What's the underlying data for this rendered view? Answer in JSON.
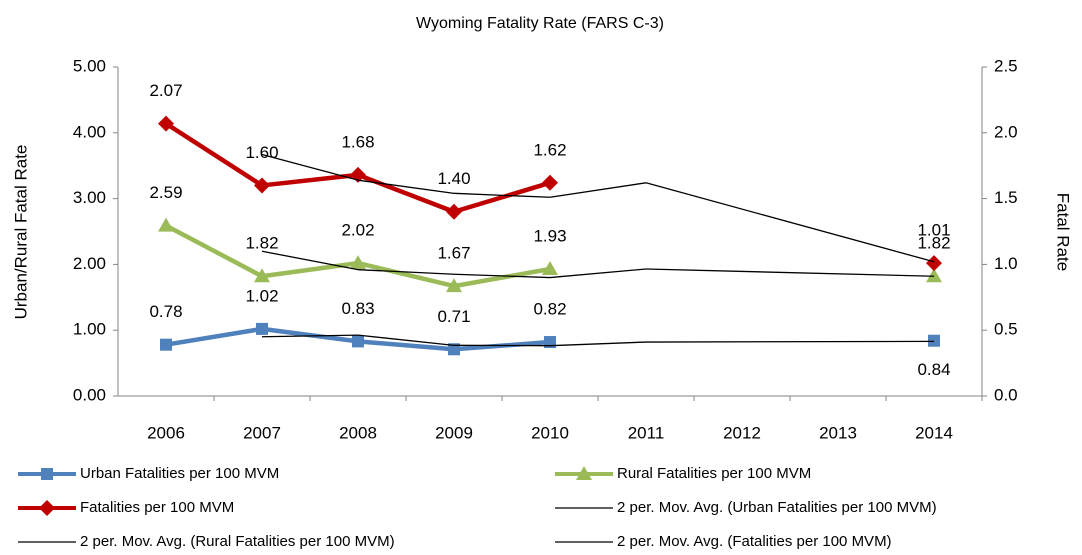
{
  "chart_data": {
    "type": "line",
    "title": "Wyoming Fatality  Rate  (FARS C-3)",
    "ylabel": "Urban/Rural  Fatal Rate",
    "y2label": "Fatal Rate",
    "categories": [
      "2006",
      "2007",
      "2008",
      "2009",
      "2010",
      "2011",
      "2012",
      "2013",
      "2014"
    ],
    "ylim": [
      0,
      5
    ],
    "yticks": [
      {
        "value": 0,
        "label": "0.00"
      },
      {
        "value": 1,
        "label": "1.00"
      },
      {
        "value": 2,
        "label": "2.00"
      },
      {
        "value": 3,
        "label": "3.00"
      },
      {
        "value": 4,
        "label": "4.00"
      },
      {
        "value": 5,
        "label": "5.00"
      }
    ],
    "y2lim": [
      0,
      2.5
    ],
    "y2ticks": [
      {
        "value": 0,
        "label": "0.0"
      },
      0.5,
      {
        "value": 1,
        "label": "1.0"
      },
      1.5,
      {
        "value": 2,
        "label": "2.0"
      },
      2.5
    ],
    "series": [
      {
        "name": "Urban Fatalities per 100 MVM",
        "color": "#4f81bd",
        "marker": "square",
        "values": [
          0.78,
          1.02,
          0.83,
          0.71,
          0.82,
          null,
          null,
          null,
          0.84
        ],
        "value_labels": [
          "0.78",
          "1.02",
          "0.83",
          "0.71",
          "0.82",
          null,
          null,
          null,
          "0.84"
        ]
      },
      {
        "name": "Rural Fatalities per 100 MVM",
        "color": "#9bbb59",
        "marker": "triangle",
        "values": [
          2.59,
          1.82,
          2.02,
          1.67,
          1.93,
          null,
          null,
          null,
          1.82
        ],
        "value_labels": [
          "2.59",
          "1.82",
          "2.02",
          "1.67",
          "1.93",
          null,
          null,
          null,
          "1.82"
        ]
      },
      {
        "name": "Fatalities per 100 MVM",
        "color": "#c00000",
        "marker": "diamond",
        "axis": "y2",
        "values": [
          2.07,
          1.6,
          1.68,
          1.4,
          1.62,
          null,
          null,
          null,
          1.01
        ],
        "value_labels": [
          "2.07",
          "1.60",
          "1.68",
          "1.40",
          "1.62",
          null,
          null,
          null,
          "1.01"
        ]
      },
      {
        "name": "2 per. Mov. Avg. (Urban Fatalities per 100 MVM)",
        "color": "#000000",
        "span_gaps": true,
        "values": [
          null,
          0.9,
          0.925,
          0.77,
          0.765,
          0.82,
          null,
          null,
          0.83
        ]
      },
      {
        "name": "2 per. Mov. Avg. (Rural Fatalities per 100 MVM)",
        "color": "#000000",
        "span_gaps": true,
        "values": [
          null,
          2.2,
          1.92,
          1.85,
          1.8,
          1.93,
          null,
          null,
          1.82
        ]
      },
      {
        "name": "2 per. Mov. Avg. (Fatalities per 100 MVM)",
        "color": "#000000",
        "span_gaps": true,
        "axis": "y2",
        "values": [
          null,
          1.835,
          1.64,
          1.54,
          1.51,
          1.62,
          null,
          null,
          1.02
        ]
      }
    ]
  }
}
